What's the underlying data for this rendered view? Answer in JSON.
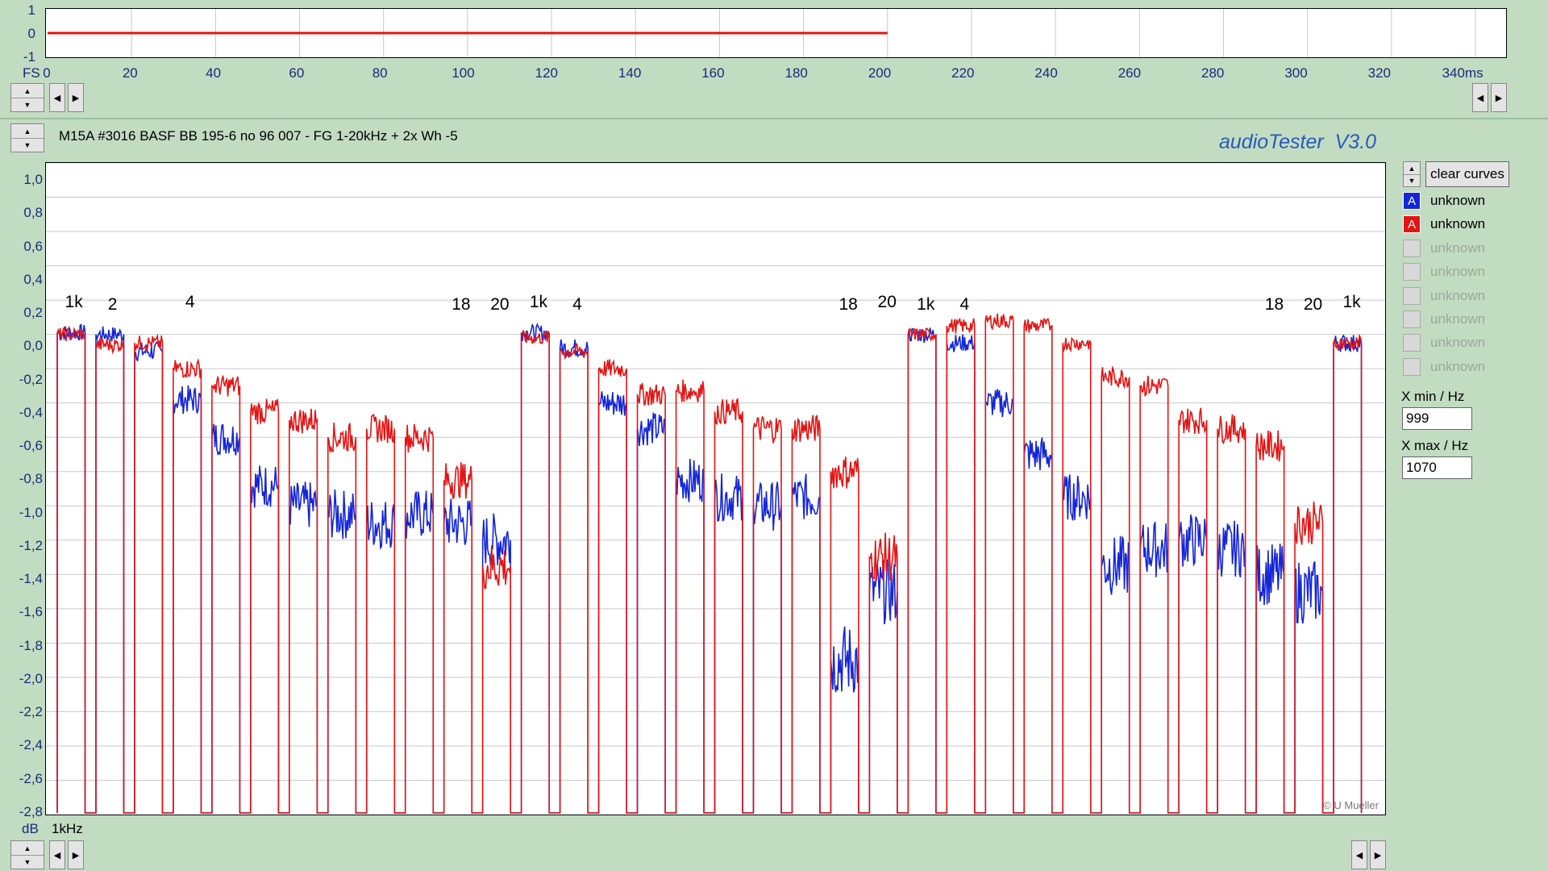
{
  "top_panel": {
    "y_ticks": [
      "1",
      "0",
      "-1"
    ],
    "fs_label": "FS",
    "x_ticks": [
      "0",
      "20",
      "40",
      "60",
      "80",
      "100",
      "120",
      "140",
      "160",
      "180",
      "200",
      "220",
      "240",
      "260",
      "280",
      "300",
      "320",
      "340ms"
    ]
  },
  "header": {
    "title": "M15A #3016 BASF BB 195-6 no 96 007 - FG 1-20kHz + 2x Wh -5",
    "app_name": "audioTester  V3.0"
  },
  "main_panel": {
    "y_ticks": [
      "1,0",
      "0,8",
      "0,6",
      "0,4",
      "0,2",
      "0,0",
      "-0,2",
      "-0,4",
      "-0,6",
      "-0,8",
      "-1,0",
      "-1,2",
      "-1,4",
      "-1,6",
      "-1,8",
      "-2,0",
      "-2,2",
      "-2,4",
      "-2,6",
      "-2,8"
    ],
    "y_unit": "dB",
    "x_label": "1kHz",
    "copyright": "© U Mueller",
    "freq_labels": [
      "1k",
      "2",
      "4",
      "18",
      "20",
      "1k",
      "4",
      "18",
      "20",
      "1k",
      "4",
      "18",
      "20",
      "1k"
    ]
  },
  "side_panel": {
    "clear_button": "clear curves",
    "legend": [
      {
        "letter": "A",
        "label": "unknown",
        "color": "#1426d8",
        "active": true
      },
      {
        "letter": "A",
        "label": "unknown",
        "color": "#e41414",
        "active": true
      },
      {
        "letter": "",
        "label": "unknown",
        "active": false
      },
      {
        "letter": "",
        "label": "unknown",
        "active": false
      },
      {
        "letter": "",
        "label": "unknown",
        "active": false
      },
      {
        "letter": "",
        "label": "unknown",
        "active": false
      },
      {
        "letter": "",
        "label": "unknown",
        "active": false
      },
      {
        "letter": "",
        "label": "unknown",
        "active": false
      }
    ],
    "xmin_label": "X min / Hz",
    "xmin_value": "999",
    "xmax_label": "X max / Hz",
    "xmax_value": "1070"
  },
  "colors": {
    "background": "#c2dcc2",
    "channel_a": "#1426d8",
    "channel_b": "#e41414",
    "axis_text": "#1a2a7a",
    "app_name": "#2a5ab8"
  },
  "icons": {
    "spin_up": "triangle-up-icon",
    "spin_down": "triangle-down-icon",
    "scroll_left": "triangle-left-icon",
    "scroll_right": "triangle-right-icon"
  },
  "chart_data": [
    {
      "type": "line",
      "title": "",
      "xlabel": "ms",
      "ylabel": "FS",
      "xlim": [
        0,
        340
      ],
      "ylim": [
        -1,
        1
      ],
      "grid": true,
      "series": [
        {
          "name": "",
          "color": "#1426d8",
          "x": [
            0,
            200
          ],
          "y": [
            0,
            0
          ]
        },
        {
          "name": "",
          "color": "#e41414",
          "x": [
            0,
            200
          ],
          "y": [
            0,
            0
          ]
        }
      ]
    },
    {
      "type": "line",
      "title": "",
      "xlabel": "1kHz",
      "ylabel": "dB",
      "ylim": [
        -2.8,
        1.0
      ],
      "grid": true,
      "segments": [
        {
          "label": "1k",
          "blue": 0.01,
          "red": 0.0
        },
        {
          "label": "2",
          "blue": 0.0,
          "red": -0.06
        },
        {
          "label": "",
          "blue": -0.1,
          "red": -0.05
        },
        {
          "label": "4",
          "blue": -0.38,
          "red": -0.2
        },
        {
          "label": "",
          "blue": -0.6,
          "red": -0.3
        },
        {
          "label": "",
          "blue": -0.88,
          "red": -0.45
        },
        {
          "label": "",
          "blue": -1.0,
          "red": -0.5
        },
        {
          "label": "",
          "blue": -1.05,
          "red": -0.6
        },
        {
          "label": "",
          "blue": -1.1,
          "red": -0.55
        },
        {
          "label": "",
          "blue": -1.05,
          "red": -0.6
        },
        {
          "label": "18",
          "blue": -1.1,
          "red": -0.85
        },
        {
          "label": "20",
          "blue": -1.2,
          "red": -1.35
        },
        {
          "label": "1k",
          "blue": 0.01,
          "red": -0.02
        },
        {
          "label": "4",
          "blue": -0.08,
          "red": -0.1
        },
        {
          "label": "",
          "blue": -0.4,
          "red": -0.2
        },
        {
          "label": "",
          "blue": -0.55,
          "red": -0.35
        },
        {
          "label": "",
          "blue": -0.85,
          "red": -0.33
        },
        {
          "label": "",
          "blue": -0.95,
          "red": -0.45
        },
        {
          "label": "",
          "blue": -1.0,
          "red": -0.55
        },
        {
          "label": "",
          "blue": -0.95,
          "red": -0.55
        },
        {
          "label": "18",
          "blue": -1.9,
          "red": -0.8
        },
        {
          "label": "20",
          "blue": -1.5,
          "red": -1.3
        },
        {
          "label": "1k",
          "blue": 0.0,
          "red": 0.0
        },
        {
          "label": "4",
          "blue": -0.05,
          "red": 0.05
        },
        {
          "label": "",
          "blue": -0.4,
          "red": 0.08
        },
        {
          "label": "",
          "blue": -0.7,
          "red": 0.05
        },
        {
          "label": "",
          "blue": -0.95,
          "red": -0.05
        },
        {
          "label": "",
          "blue": -1.35,
          "red": -0.25
        },
        {
          "label": "",
          "blue": -1.25,
          "red": -0.3
        },
        {
          "label": "",
          "blue": -1.2,
          "red": -0.5
        },
        {
          "label": "",
          "blue": -1.25,
          "red": -0.55
        },
        {
          "label": "18",
          "blue": -1.4,
          "red": -0.65
        },
        {
          "label": "20",
          "blue": -1.5,
          "red": -1.1
        },
        {
          "label": "1k",
          "blue": -0.05,
          "red": -0.05
        }
      ]
    }
  ]
}
